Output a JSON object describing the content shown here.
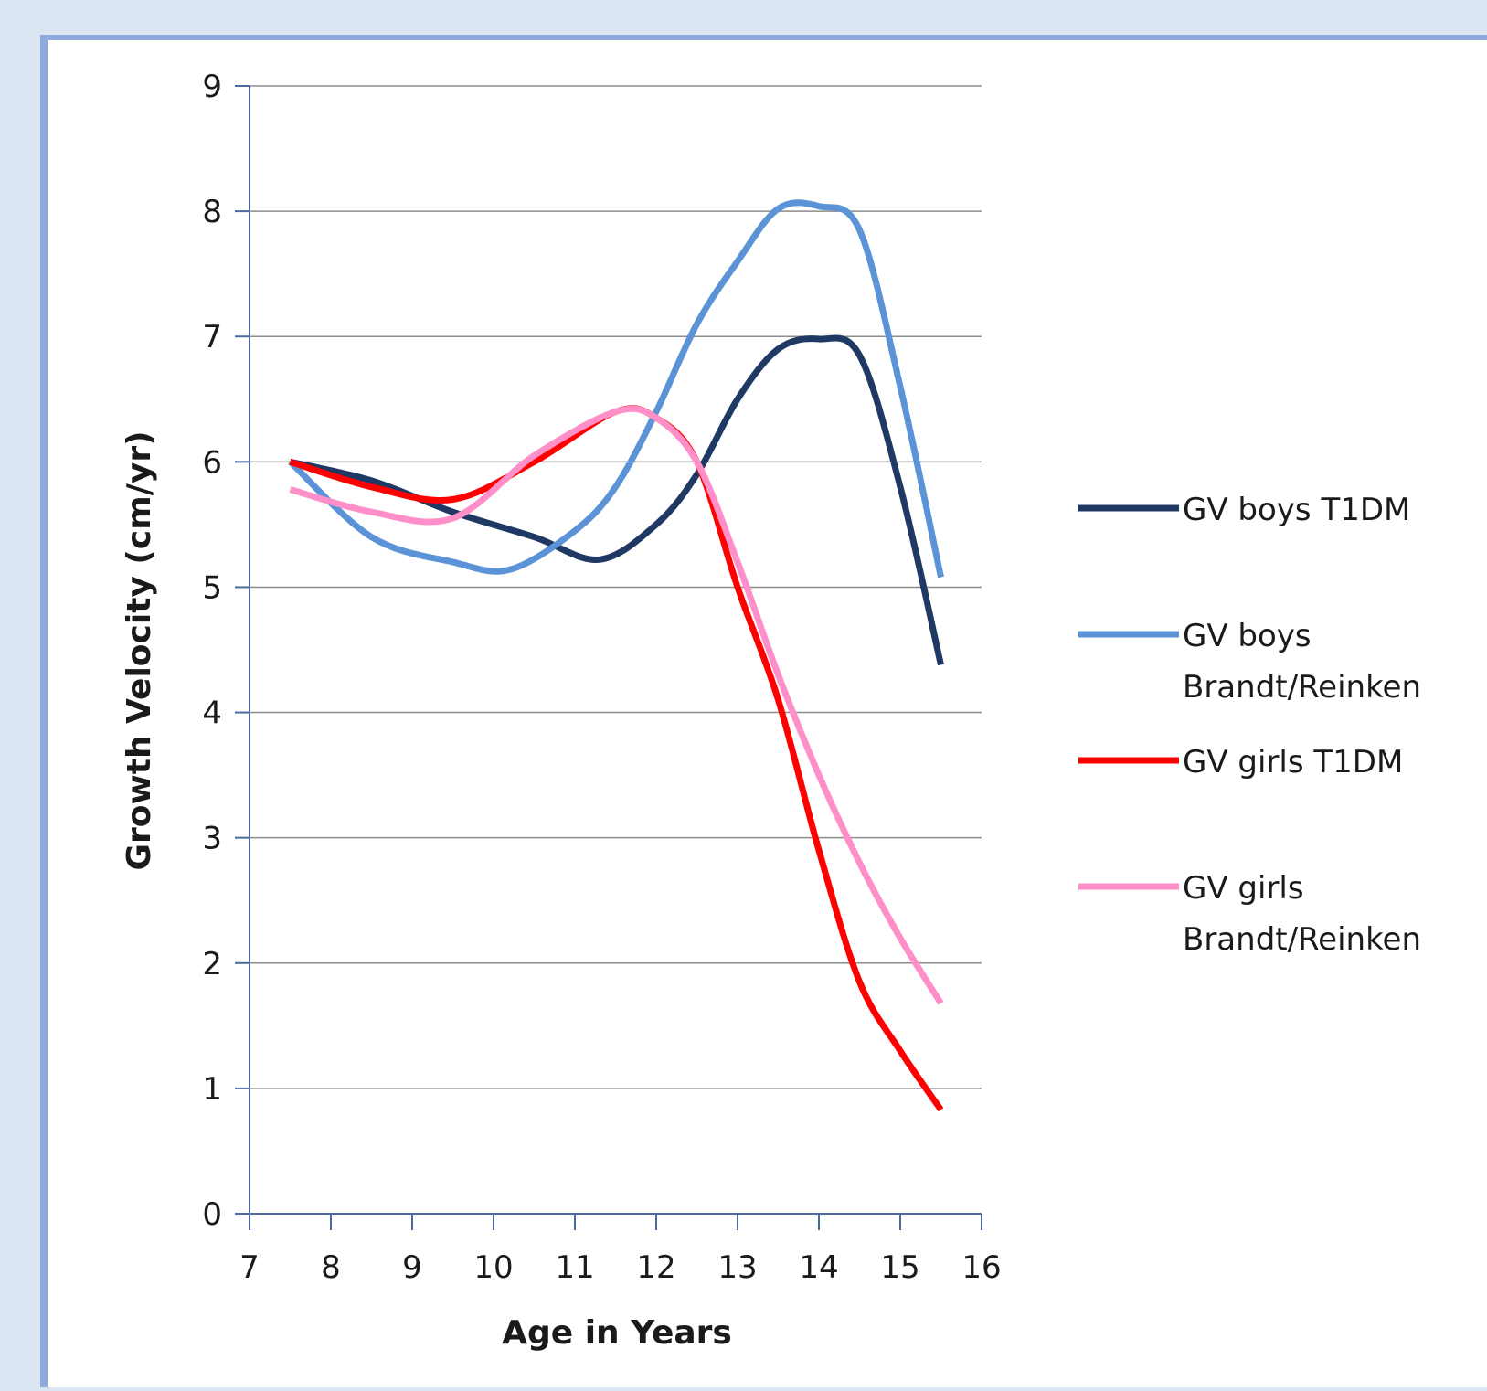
{
  "chart_data": {
    "type": "line",
    "xlabel": "Age in Years",
    "ylabel": "Growth Velocity (cm/yr)",
    "xlim": [
      7,
      16
    ],
    "ylim": [
      0,
      9
    ],
    "xticks": [
      7,
      8,
      9,
      10,
      11,
      12,
      13,
      14,
      15,
      16
    ],
    "yticks": [
      0,
      1,
      2,
      3,
      4,
      5,
      6,
      7,
      8,
      9
    ],
    "grid": true,
    "legend_position": "right",
    "series": [
      {
        "name": "GV boys T1DM",
        "color": "#1f3864",
        "x": [
          7.5,
          8.5,
          9.5,
          10.5,
          11.3,
          12,
          12.5,
          13,
          13.5,
          14,
          14.5,
          15,
          15.5
        ],
        "y": [
          6.0,
          5.85,
          5.6,
          5.4,
          5.22,
          5.5,
          5.9,
          6.5,
          6.9,
          6.98,
          6.85,
          5.8,
          4.38
        ]
      },
      {
        "name": "GV boys Brandt/Reinken",
        "color": "#5b93d6",
        "x": [
          7.5,
          8.5,
          9.5,
          10.2,
          11,
          11.5,
          12,
          12.5,
          13,
          13.5,
          14,
          14.5,
          15,
          15.5
        ],
        "y": [
          6.0,
          5.4,
          5.2,
          5.14,
          5.45,
          5.8,
          6.4,
          7.1,
          7.6,
          8.02,
          8.04,
          7.85,
          6.6,
          5.08
        ]
      },
      {
        "name": "GV girls T1DM",
        "color": "#ff0000",
        "x": [
          7.5,
          8.5,
          9.5,
          10.5,
          11.5,
          12,
          12.5,
          13,
          13.5,
          14,
          14.5,
          15,
          15.5
        ],
        "y": [
          6.0,
          5.8,
          5.7,
          6.0,
          6.4,
          6.35,
          6.0,
          5.0,
          4.1,
          2.9,
          1.85,
          1.3,
          0.83
        ]
      },
      {
        "name": "GV girls Brandt/Reinken",
        "color": "#ff8fc8",
        "x": [
          7.5,
          8.5,
          9.5,
          10.5,
          11.5,
          12,
          12.5,
          13,
          13.5,
          14,
          14.5,
          15,
          15.5
        ],
        "y": [
          5.78,
          5.6,
          5.55,
          6.05,
          6.4,
          6.35,
          6.0,
          5.2,
          4.3,
          3.5,
          2.8,
          2.2,
          1.68
        ]
      }
    ]
  },
  "legend": {
    "entries": [
      {
        "lines": [
          "GV boys T1DM"
        ]
      },
      {
        "lines": [
          "GV boys",
          "Brandt/Reinken"
        ]
      },
      {
        "lines": [
          "GV girls T1DM"
        ]
      },
      {
        "lines": [
          "GV girls",
          "Brandt/Reinken"
        ]
      }
    ]
  }
}
